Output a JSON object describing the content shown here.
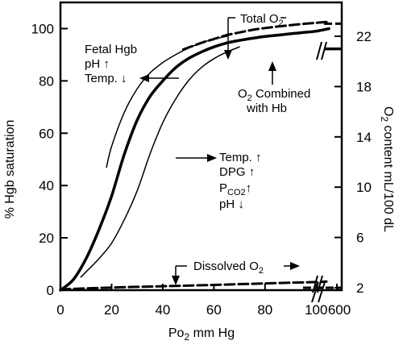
{
  "chart_data": {
    "type": "line",
    "xlabel": "Po",
    "xlabel_sub": "2",
    "xlabel_tail": " mm Hg",
    "ylabel": "% Hgb saturation",
    "y2label": "O",
    "y2label_sub": "2",
    "y2label_tail": " content mL/100 dL",
    "x_ticks": [
      "0",
      "20",
      "40",
      "60",
      "80",
      "100",
      "600"
    ],
    "y_ticks": [
      "0",
      "20",
      "40",
      "60",
      "80",
      "100"
    ],
    "y2_ticks": [
      "2",
      "6",
      "10",
      "14",
      "18",
      "22"
    ],
    "xlim": [
      0,
      110
    ],
    "ylim": [
      0,
      110
    ],
    "series": [
      {
        "name": "O2 Combined with Hb",
        "style": "thick-solid",
        "x": [
          0,
          5,
          10,
          15,
          20,
          25,
          30,
          35,
          40,
          45,
          50,
          55,
          60,
          65,
          70,
          75,
          80,
          85,
          90,
          95,
          100,
          105
        ],
        "y": [
          0,
          4,
          12,
          23,
          36,
          52,
          65,
          74,
          80,
          85,
          88.5,
          91,
          93,
          94.5,
          95.5,
          96.3,
          97,
          97.5,
          98,
          98.5,
          99,
          100
        ]
      },
      {
        "name": "Fetal Hgb / pH up / Temp. down",
        "style": "thin-solid",
        "x": [
          18,
          20,
          25,
          30,
          35,
          40,
          45,
          50,
          55,
          60,
          65
        ],
        "y": [
          47,
          55,
          68,
          77,
          83,
          87,
          90,
          92.5,
          94.5,
          96,
          97
        ]
      },
      {
        "name": "Temp. up / DPG up / PCO2 up / pH down",
        "style": "thin-solid",
        "x": [
          8,
          10,
          15,
          20,
          25,
          30,
          35,
          40,
          45,
          50,
          55,
          60,
          65,
          70
        ],
        "y": [
          5,
          7,
          12,
          18,
          27,
          38,
          52,
          64,
          73,
          80,
          85,
          88.5,
          91,
          93
        ]
      },
      {
        "name": "Total O2",
        "style": "dashed",
        "x": [
          48,
          55,
          60,
          65,
          70,
          75,
          80,
          85,
          90,
          95,
          100,
          104
        ],
        "y": [
          92,
          94.5,
          96,
          97.5,
          98.5,
          99.5,
          100.2,
          100.8,
          101.3,
          101.8,
          102.2,
          102.5
        ]
      },
      {
        "name": "Dissolved O2",
        "style": "dashed",
        "x": [
          0,
          20,
          40,
          60,
          80,
          100,
          104
        ],
        "y": [
          0.3,
          1.0,
          1.5,
          2.0,
          2.6,
          3.1,
          3.3
        ]
      }
    ],
    "tails": {
      "total_o2_y2": 23,
      "combined_y2": 21,
      "dissolved_y2": 2
    },
    "annotations": {
      "total": {
        "text": "Total O",
        "sub": "2"
      },
      "fetal": [
        "Fetal Hgb",
        "pH ↑",
        "Temp. ↓"
      ],
      "combined": {
        "line1": "O",
        "line1_sub": "2",
        "line1_tail": " Combined",
        "line2": "with Hb"
      },
      "right": {
        "line1": "Temp. ↑",
        "line2": "DPG ↑",
        "line3": "P",
        "line3_sub": "CO2",
        "line3_tail": "↑",
        "line4": "pH ↓"
      },
      "dissolved": {
        "text": "Dissolved O",
        "sub": "2"
      }
    }
  }
}
